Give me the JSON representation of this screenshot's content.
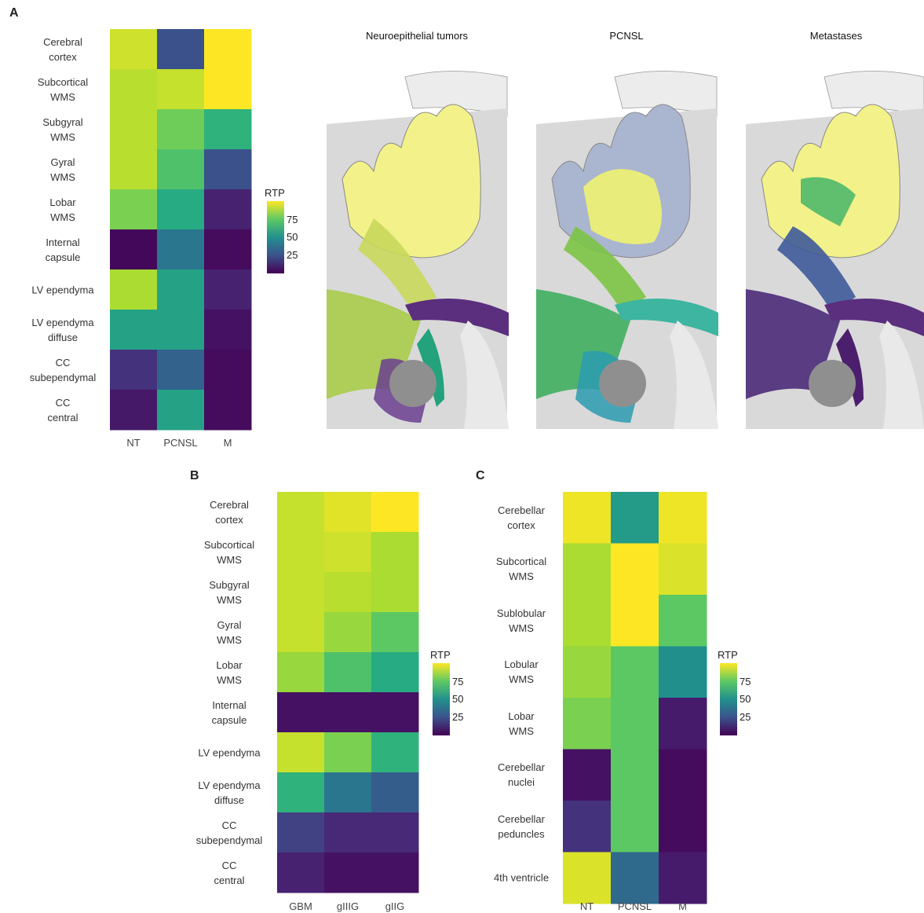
{
  "panels": {
    "a": "A",
    "b": "B",
    "c": "C"
  },
  "legend": {
    "title": "RTP",
    "ticks": [
      "75",
      "50",
      "25"
    ]
  },
  "illustrations": {
    "titles": [
      "Neuroepithelial tumors",
      "PCNSL",
      "Metastases"
    ]
  },
  "colors": {
    "viridis_low": "#440154",
    "viridis_mid": "#21908d",
    "viridis_high": "#fde725",
    "brain_gray": "#c8c8c8",
    "pcnsl_cortex": "#aab5d0"
  },
  "chart_data": [
    {
      "type": "heatmap",
      "panel": "A",
      "legend_title": "RTP",
      "columns": [
        "NT",
        "PCNSL",
        "M"
      ],
      "rows": [
        "Cerebral\ncortex",
        "Subcortical\nWMS",
        "Subgyral\nWMS",
        "Gyral\nWMS",
        "Lobar\nWMS",
        "Internal\ncapsule",
        "LV ependyma",
        "LV ependyma\ndiffuse",
        "CC\nsubependymal",
        "CC\ncentral"
      ],
      "values": [
        [
          93,
          25,
          100
        ],
        [
          90,
          92,
          100
        ],
        [
          90,
          78,
          65
        ],
        [
          90,
          72,
          25
        ],
        [
          80,
          62,
          10
        ],
        [
          2,
          40,
          3
        ],
        [
          88,
          58,
          10
        ],
        [
          58,
          58,
          5
        ],
        [
          15,
          32,
          3
        ],
        [
          7,
          58,
          3
        ]
      ],
      "scale": [
        0,
        100
      ]
    },
    {
      "type": "heatmap",
      "panel": "B",
      "legend_title": "RTP",
      "columns": [
        "GBM",
        "gIIIG",
        "gIIG"
      ],
      "rows": [
        "Cerebral\ncortex",
        "Subcortical\nWMS",
        "Subgyral\nWMS",
        "Gyral\nWMS",
        "Lobar\nWMS",
        "Internal\ncapsule",
        "LV ependyma",
        "LV ependyma\ndiffuse",
        "CC\nsubependymal",
        "CC\ncentral"
      ],
      "values": [
        [
          92,
          96,
          100
        ],
        [
          92,
          93,
          88
        ],
        [
          92,
          90,
          88
        ],
        [
          92,
          85,
          75
        ],
        [
          85,
          72,
          62
        ],
        [
          5,
          5,
          5
        ],
        [
          92,
          80,
          65
        ],
        [
          65,
          40,
          30
        ],
        [
          20,
          12,
          12
        ],
        [
          10,
          5,
          5
        ]
      ],
      "scale": [
        0,
        100
      ]
    },
    {
      "type": "heatmap",
      "panel": "C",
      "legend_title": "RTP",
      "columns": [
        "NT",
        "PCNSL",
        "M"
      ],
      "rows": [
        "Cerebellar\ncortex",
        "Subcortical\nWMS",
        "Sublobular\nWMS",
        "Lobular\nWMS",
        "Lobar\nWMS",
        "Cerebellar\nnuclei",
        "Cerebellar\npeduncles",
        "4th ventricle"
      ],
      "values": [
        [
          98,
          55,
          98
        ],
        [
          88,
          100,
          95
        ],
        [
          88,
          100,
          75
        ],
        [
          85,
          75,
          50
        ],
        [
          80,
          75,
          8
        ],
        [
          5,
          75,
          3
        ],
        [
          15,
          75,
          3
        ],
        [
          95,
          35,
          8
        ]
      ],
      "scale": [
        0,
        100
      ]
    }
  ]
}
